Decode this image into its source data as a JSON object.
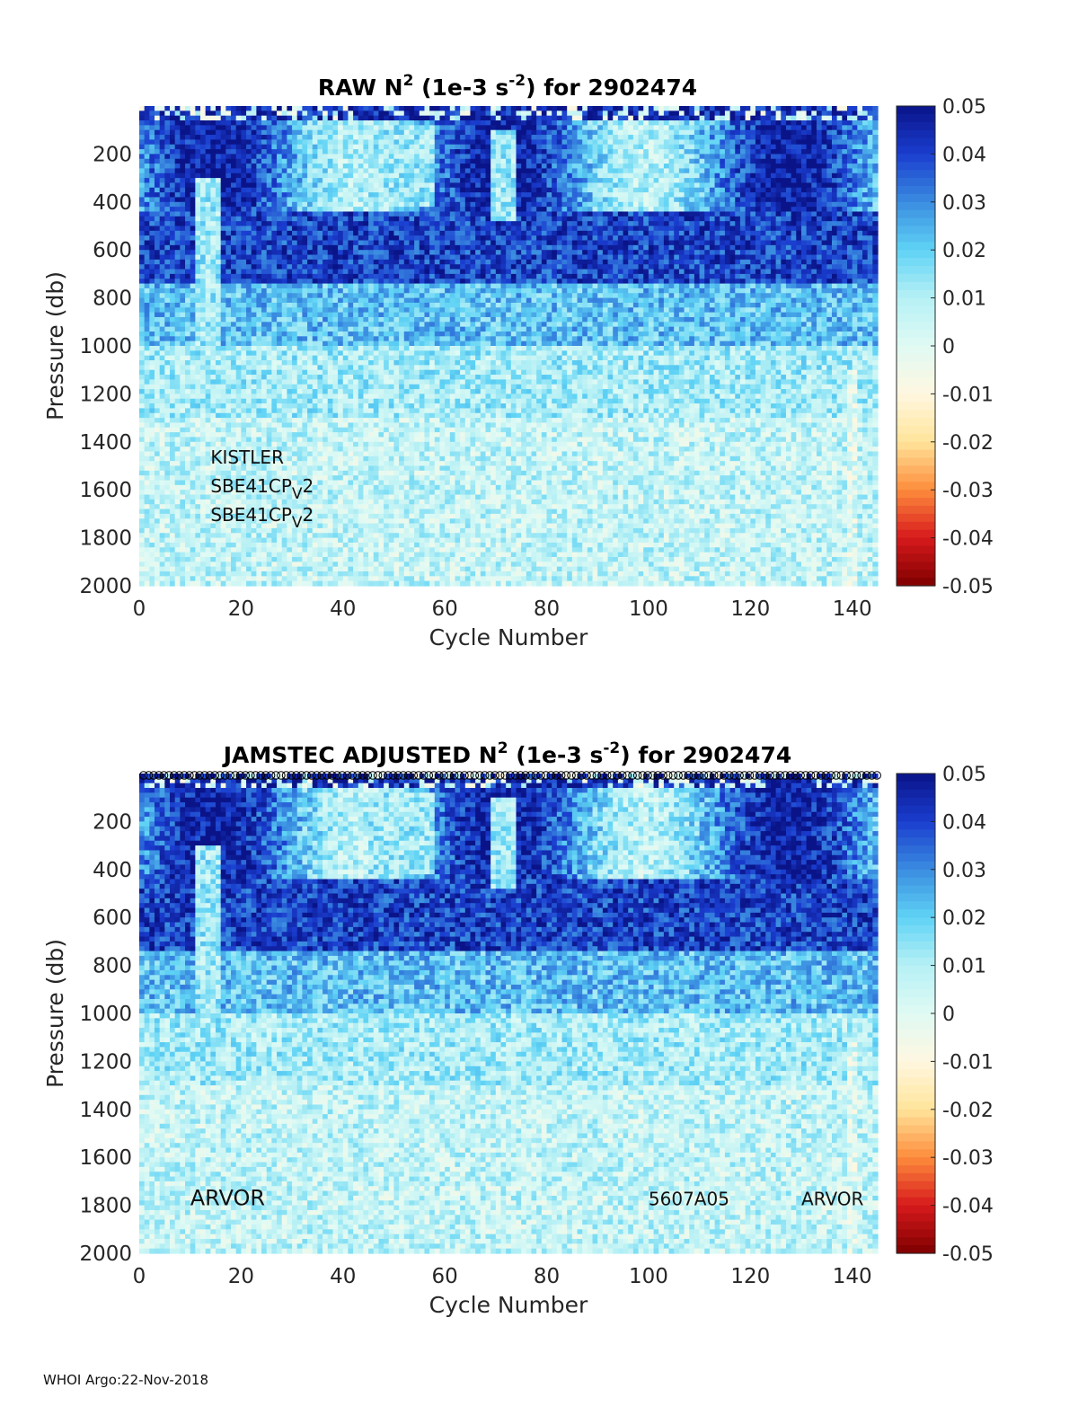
{
  "chart_data": [
    {
      "type": "heatmap",
      "title_main": "RAW N",
      "title_sup1": "2",
      "title_unit_open": " (1e-3 s",
      "title_sup2": "-2",
      "title_unit_close": ") for 2902474",
      "xlabel": "Cycle Number",
      "ylabel": "Pressure (db)",
      "xlim": [
        0,
        145
      ],
      "ylim": [
        2000,
        0
      ],
      "xticks": [
        "0",
        "20",
        "40",
        "60",
        "80",
        "100",
        "120",
        "140"
      ],
      "xtick_values": [
        0,
        20,
        40,
        60,
        80,
        100,
        120,
        140
      ],
      "yticks": [
        "200",
        "400",
        "600",
        "800",
        "1000",
        "1200",
        "1400",
        "1600",
        "1800",
        "2000"
      ],
      "ytick_values": [
        200,
        400,
        600,
        800,
        1000,
        1200,
        1400,
        1600,
        1800,
        2000
      ],
      "colorbar_ticks": [
        "0.05",
        "0.04",
        "0.03",
        "0.02",
        "0.01",
        "0",
        "-0.01",
        "-0.02",
        "-0.03",
        "-0.04",
        "-0.05"
      ],
      "colorbar_range": [
        -0.05,
        0.05
      ],
      "annotations": [
        {
          "text": "KISTLER",
          "x": 14,
          "y": 1490
        },
        {
          "text": "SBE41CP",
          "sub": "V",
          "tail": "2",
          "x": 14,
          "y": 1610
        },
        {
          "text": "SBE41CP",
          "sub": "V",
          "tail": "2",
          "x": 14,
          "y": 1730
        }
      ],
      "cycle_markers": false
    },
    {
      "type": "heatmap",
      "title_main": "JAMSTEC  ADJUSTED N",
      "title_sup1": "2",
      "title_unit_open": " (1e-3 s",
      "title_sup2": "-2",
      "title_unit_close": ") for 2902474",
      "xlabel": "Cycle Number",
      "ylabel": "Pressure (db)",
      "xlim": [
        0,
        145
      ],
      "ylim": [
        2000,
        0
      ],
      "xticks": [
        "0",
        "20",
        "40",
        "60",
        "80",
        "100",
        "120",
        "140"
      ],
      "xtick_values": [
        0,
        20,
        40,
        60,
        80,
        100,
        120,
        140
      ],
      "yticks": [
        "200",
        "400",
        "600",
        "800",
        "1000",
        "1200",
        "1400",
        "1600",
        "1800",
        "2000"
      ],
      "ytick_values": [
        200,
        400,
        600,
        800,
        1000,
        1200,
        1400,
        1600,
        1800,
        2000
      ],
      "colorbar_ticks": [
        "0.05",
        "0.04",
        "0.03",
        "0.02",
        "0.01",
        "0",
        "-0.01",
        "-0.02",
        "-0.03",
        "-0.04",
        "-0.05"
      ],
      "colorbar_range": [
        -0.05,
        0.05
      ],
      "annotations": [
        {
          "text": "ARVOR",
          "x": 10,
          "y": 1800,
          "large": true
        },
        {
          "text": "5607A05",
          "x": 100,
          "y": 1800
        },
        {
          "text": "ARVOR",
          "x": 130,
          "y": 1800
        }
      ],
      "cycle_markers": true
    }
  ],
  "footer": "WHOI Argo:22-Nov-2018",
  "colors": {
    "cmap": [
      "#7f0000",
      "#d7191c",
      "#fd8d3c",
      "#ffe49a",
      "#fff7e0",
      "#dffaf4",
      "#b6f0f5",
      "#5fd3f5",
      "#3a8ce0",
      "#1a3dcf",
      "#0a1488"
    ],
    "axis": "#262626"
  }
}
